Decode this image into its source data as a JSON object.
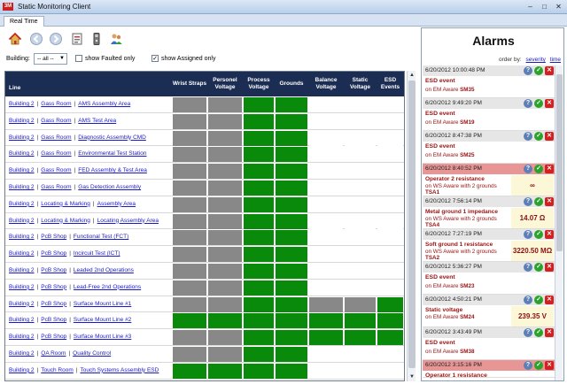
{
  "window": {
    "title": "Static Monitoring Client",
    "logo_text": "3M"
  },
  "tabs": [
    {
      "label": "Real Time"
    }
  ],
  "filters": {
    "building_label": "Building:",
    "building_value": "-- all --",
    "show_faulted_label": "show Faulted only",
    "show_faulted_checked": false,
    "show_assigned_label": "show Assigned only",
    "show_assigned_checked": true
  },
  "grid": {
    "columns": [
      "Line",
      "Wrist Straps",
      "Personel Voltage",
      "Process Voltage",
      "Grounds",
      "Balance Voltage",
      "Static Voltage",
      "ESD Events"
    ],
    "colors": {
      "gray": "#888888",
      "green": "#0a8a0a",
      "empty": "#ffffff"
    },
    "rows": [
      {
        "parts": [
          "Building 2",
          "Gass Room",
          "AMS Assembly Area"
        ],
        "cells": [
          "gray",
          "gray",
          "green",
          "green",
          "empty",
          "empty",
          "empty"
        ]
      },
      {
        "parts": [
          "Building 2",
          "Gass Room",
          "AMS Test Area"
        ],
        "cells": [
          "gray",
          "gray",
          "green",
          "green",
          "empty",
          "empty",
          "empty"
        ]
      },
      {
        "parts": [
          "Building 2",
          "Gass Room",
          "Diagnostic Assembly CMD"
        ],
        "cells": [
          "gray",
          "gray",
          "green",
          "green",
          "empty",
          "empty",
          "empty"
        ]
      },
      {
        "parts": [
          "Building 2",
          "Gass Room",
          "Environmental Test Station"
        ],
        "cells": [
          "gray",
          "gray",
          "green",
          "green",
          "empty",
          "empty",
          "empty"
        ]
      },
      {
        "parts": [
          "Building 2",
          "Gass Room",
          "FED Assembly & Test Area"
        ],
        "cells": [
          "gray",
          "gray",
          "green",
          "green",
          "empty",
          "empty",
          "empty"
        ]
      },
      {
        "parts": [
          "Building 2",
          "Gass Room",
          "Gas Detection Assembly"
        ],
        "cells": [
          "gray",
          "gray",
          "green",
          "green",
          "empty",
          "empty",
          "empty"
        ]
      },
      {
        "parts": [
          "Building 2",
          "Locating & Marking",
          "Assembly Area"
        ],
        "cells": [
          "gray",
          "gray",
          "green",
          "green",
          "empty",
          "empty",
          "empty"
        ]
      },
      {
        "parts": [
          "Building 2",
          "Locating & Marking",
          "Locating Assembly Area"
        ],
        "cells": [
          "gray",
          "gray",
          "green",
          "green",
          "empty",
          "empty",
          "empty"
        ]
      },
      {
        "parts": [
          "Building 2",
          "PcB Shop",
          "Functional Test (FCT)"
        ],
        "cells": [
          "gray",
          "gray",
          "green",
          "green",
          "empty",
          "empty",
          "empty"
        ]
      },
      {
        "parts": [
          "Building 2",
          "PcB Shop",
          "Incircuit Test (ICT)"
        ],
        "cells": [
          "gray",
          "gray",
          "green",
          "green",
          "empty",
          "empty",
          "empty"
        ]
      },
      {
        "parts": [
          "Building 2",
          "PcB Shop",
          "Leaded 2nd Operations"
        ],
        "cells": [
          "gray",
          "gray",
          "green",
          "green",
          "empty",
          "empty",
          "empty"
        ]
      },
      {
        "parts": [
          "Building 2",
          "PcB Shop",
          "Lead-Free 2nd Operations"
        ],
        "cells": [
          "gray",
          "gray",
          "green",
          "green",
          "empty",
          "empty",
          "empty"
        ]
      },
      {
        "parts": [
          "Building 2",
          "PcB Shop",
          "Surface Mount Line #1"
        ],
        "cells": [
          "gray",
          "gray",
          "green",
          "green",
          "gray",
          "gray",
          "green"
        ]
      },
      {
        "parts": [
          "Building 2",
          "PcB Shop",
          "Surface Mount Line #2"
        ],
        "cells": [
          "green",
          "green",
          "green",
          "green",
          "green",
          "green",
          "green"
        ]
      },
      {
        "parts": [
          "Building 2",
          "PcB Shop",
          "Surface Mount Line #3"
        ],
        "cells": [
          "gray",
          "gray",
          "green",
          "green",
          "green",
          "green",
          "green"
        ]
      },
      {
        "parts": [
          "Building 2",
          "QA Room",
          "Quality Control"
        ],
        "cells": [
          "gray",
          "gray",
          "green",
          "green",
          "empty",
          "empty",
          "empty"
        ]
      },
      {
        "parts": [
          "Building 2",
          "Touch Room",
          "Touch Systems Assembly ESD"
        ],
        "cells": [
          "green",
          "green",
          "green",
          "green",
          "empty",
          "empty",
          "empty"
        ]
      }
    ]
  },
  "alarms": {
    "title": "Alarms",
    "order_by_label": "order by:",
    "order_by_severity": "severity",
    "order_by_time": "time",
    "items": [
      {
        "time": "6/20/2012 10:00:48 PM",
        "hot": false,
        "type": "ESD event",
        "src_prefix": "on EM Aware ",
        "src_id": "SM35",
        "value": ""
      },
      {
        "time": "6/20/2012 9:49:20 PM",
        "hot": false,
        "type": "ESD event",
        "src_prefix": "on EM Aware ",
        "src_id": "SM19",
        "value": ""
      },
      {
        "time": "6/20/2012 8:47:38 PM",
        "hot": false,
        "type": "ESD event",
        "src_prefix": "on EM Aware ",
        "src_id": "SM25",
        "value": ""
      },
      {
        "time": "6/20/2012 8:40:52 PM",
        "hot": true,
        "type": "Operator 2 resistance",
        "src_prefix": "on WS Aware with 2 grounds ",
        "src_id": "TSA1",
        "value": "∞"
      },
      {
        "time": "6/20/2012 7:56:14 PM",
        "hot": false,
        "type": "Metal ground 1 impedance",
        "src_prefix": "on WS Aware with 2 grounds ",
        "src_id": "TSA4",
        "value": "14.07 Ω"
      },
      {
        "time": "6/20/2012 7:27:19 PM",
        "hot": false,
        "type": "Soft ground 1 resistance",
        "src_prefix": "on WS Aware with 2 grounds ",
        "src_id": "TSA2",
        "value": "3220.50 MΩ"
      },
      {
        "time": "6/20/2012 5:36:27 PM",
        "hot": false,
        "type": "ESD event",
        "src_prefix": "on EM Aware ",
        "src_id": "SM23",
        "value": ""
      },
      {
        "time": "6/20/2012 4:50:21 PM",
        "hot": false,
        "type": "Static voltage",
        "src_prefix": "on EM Aware ",
        "src_id": "SM24",
        "value": "239.35 V"
      },
      {
        "time": "6/20/2012 3:43:49 PM",
        "hot": false,
        "type": "ESD event",
        "src_prefix": "on EM Aware ",
        "src_id": "SM38",
        "value": ""
      },
      {
        "time": "6/20/2012 3:15:16 PM",
        "hot": true,
        "type": "Operator 1 resistance",
        "src_prefix": "",
        "src_id": "",
        "value": ""
      }
    ]
  }
}
